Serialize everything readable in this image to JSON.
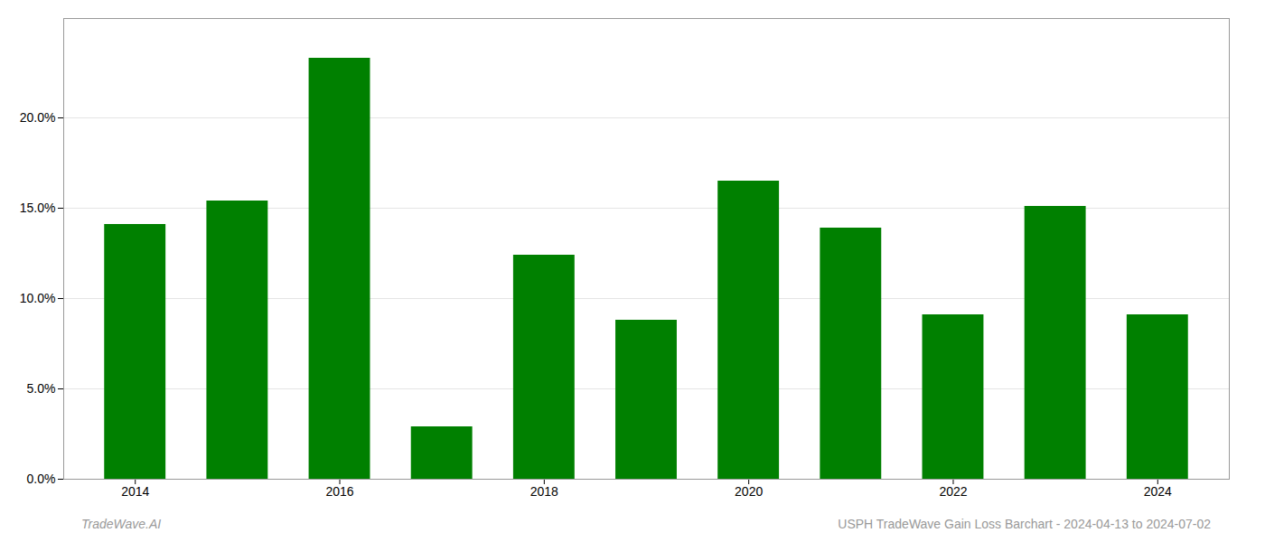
{
  "chart_data": {
    "type": "bar",
    "x": [
      2014,
      2015,
      2016,
      2017,
      2018,
      2019,
      2020,
      2021,
      2022,
      2023,
      2024
    ],
    "values": [
      0.141,
      0.154,
      0.233,
      0.029,
      0.124,
      0.088,
      0.165,
      0.139,
      0.091,
      0.151,
      0.091
    ],
    "color": "#008000",
    "xlim": [
      2013.3,
      2024.7
    ],
    "xticks": [
      2014,
      2016,
      2018,
      2020,
      2022,
      2024
    ],
    "ylim": [
      0,
      0.255
    ],
    "yticks": [
      {
        "value": 0.0,
        "label": "0.0%"
      },
      {
        "value": 0.05,
        "label": "5.0%"
      },
      {
        "value": 0.1,
        "label": "10.0%"
      },
      {
        "value": 0.15,
        "label": "15.0%"
      },
      {
        "value": 0.2,
        "label": "20.0%"
      }
    ],
    "grid": true,
    "annotations": [
      "TradeWave.AI",
      "USPH TradeWave Gain Loss Barchart - 2024-04-13 to 2024-07-02"
    ]
  }
}
